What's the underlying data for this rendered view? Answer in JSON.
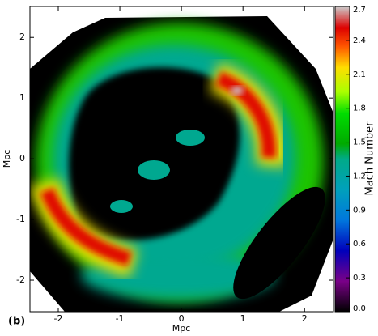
{
  "chart_data": {
    "type": "heatmap",
    "panel_label": "(b)",
    "xlabel": "Mpc",
    "ylabel": "Mpc",
    "xlim": [
      -2.46,
      2.47
    ],
    "ylim": [
      -2.52,
      2.51
    ],
    "xticks": [
      -2,
      -1,
      0,
      1,
      2
    ],
    "yticks": [
      -2,
      -1,
      0,
      1,
      2
    ],
    "colorbar": {
      "label": "Mach Number",
      "colormap": "nipy_spectral",
      "lim": [
        0,
        2.7
      ],
      "ticks": [
        {
          "value": 0,
          "label": "0.0"
        },
        0.3,
        0.6,
        0.9,
        1.2,
        1.5,
        1.8,
        2.1,
        2.4,
        2.7
      ]
    }
  }
}
